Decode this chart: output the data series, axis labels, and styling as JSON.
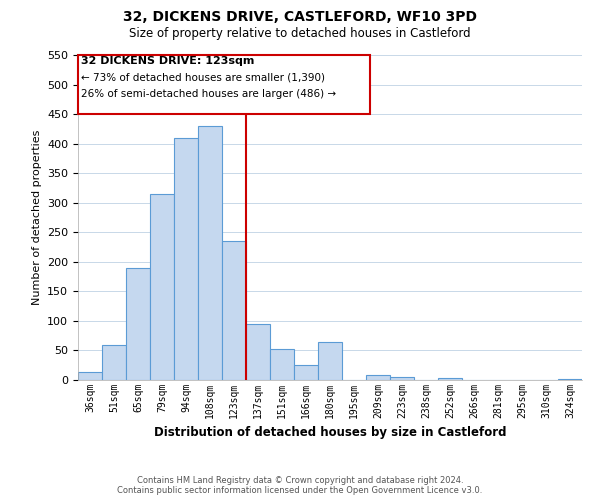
{
  "title": "32, DICKENS DRIVE, CASTLEFORD, WF10 3PD",
  "subtitle": "Size of property relative to detached houses in Castleford",
  "xlabel": "Distribution of detached houses by size in Castleford",
  "ylabel": "Number of detached properties",
  "bin_labels": [
    "36sqm",
    "51sqm",
    "65sqm",
    "79sqm",
    "94sqm",
    "108sqm",
    "123sqm",
    "137sqm",
    "151sqm",
    "166sqm",
    "180sqm",
    "195sqm",
    "209sqm",
    "223sqm",
    "238sqm",
    "252sqm",
    "266sqm",
    "281sqm",
    "295sqm",
    "310sqm",
    "324sqm"
  ],
  "bar_heights": [
    13,
    60,
    190,
    315,
    410,
    430,
    235,
    95,
    52,
    25,
    65,
    0,
    8,
    5,
    0,
    3,
    0,
    0,
    0,
    0,
    2
  ],
  "bar_color": "#c5d8ef",
  "bar_edge_color": "#5b9bd5",
  "highlight_index": 6,
  "highlight_color": "#cc0000",
  "ylim": [
    0,
    550
  ],
  "yticks": [
    0,
    50,
    100,
    150,
    200,
    250,
    300,
    350,
    400,
    450,
    500,
    550
  ],
  "annotation_title": "32 DICKENS DRIVE: 123sqm",
  "annotation_line1": "← 73% of detached houses are smaller (1,390)",
  "annotation_line2": "26% of semi-detached houses are larger (486) →",
  "footer_line1": "Contains HM Land Registry data © Crown copyright and database right 2024.",
  "footer_line2": "Contains public sector information licensed under the Open Government Licence v3.0.",
  "background_color": "#ffffff",
  "grid_color": "#c8d8e8"
}
